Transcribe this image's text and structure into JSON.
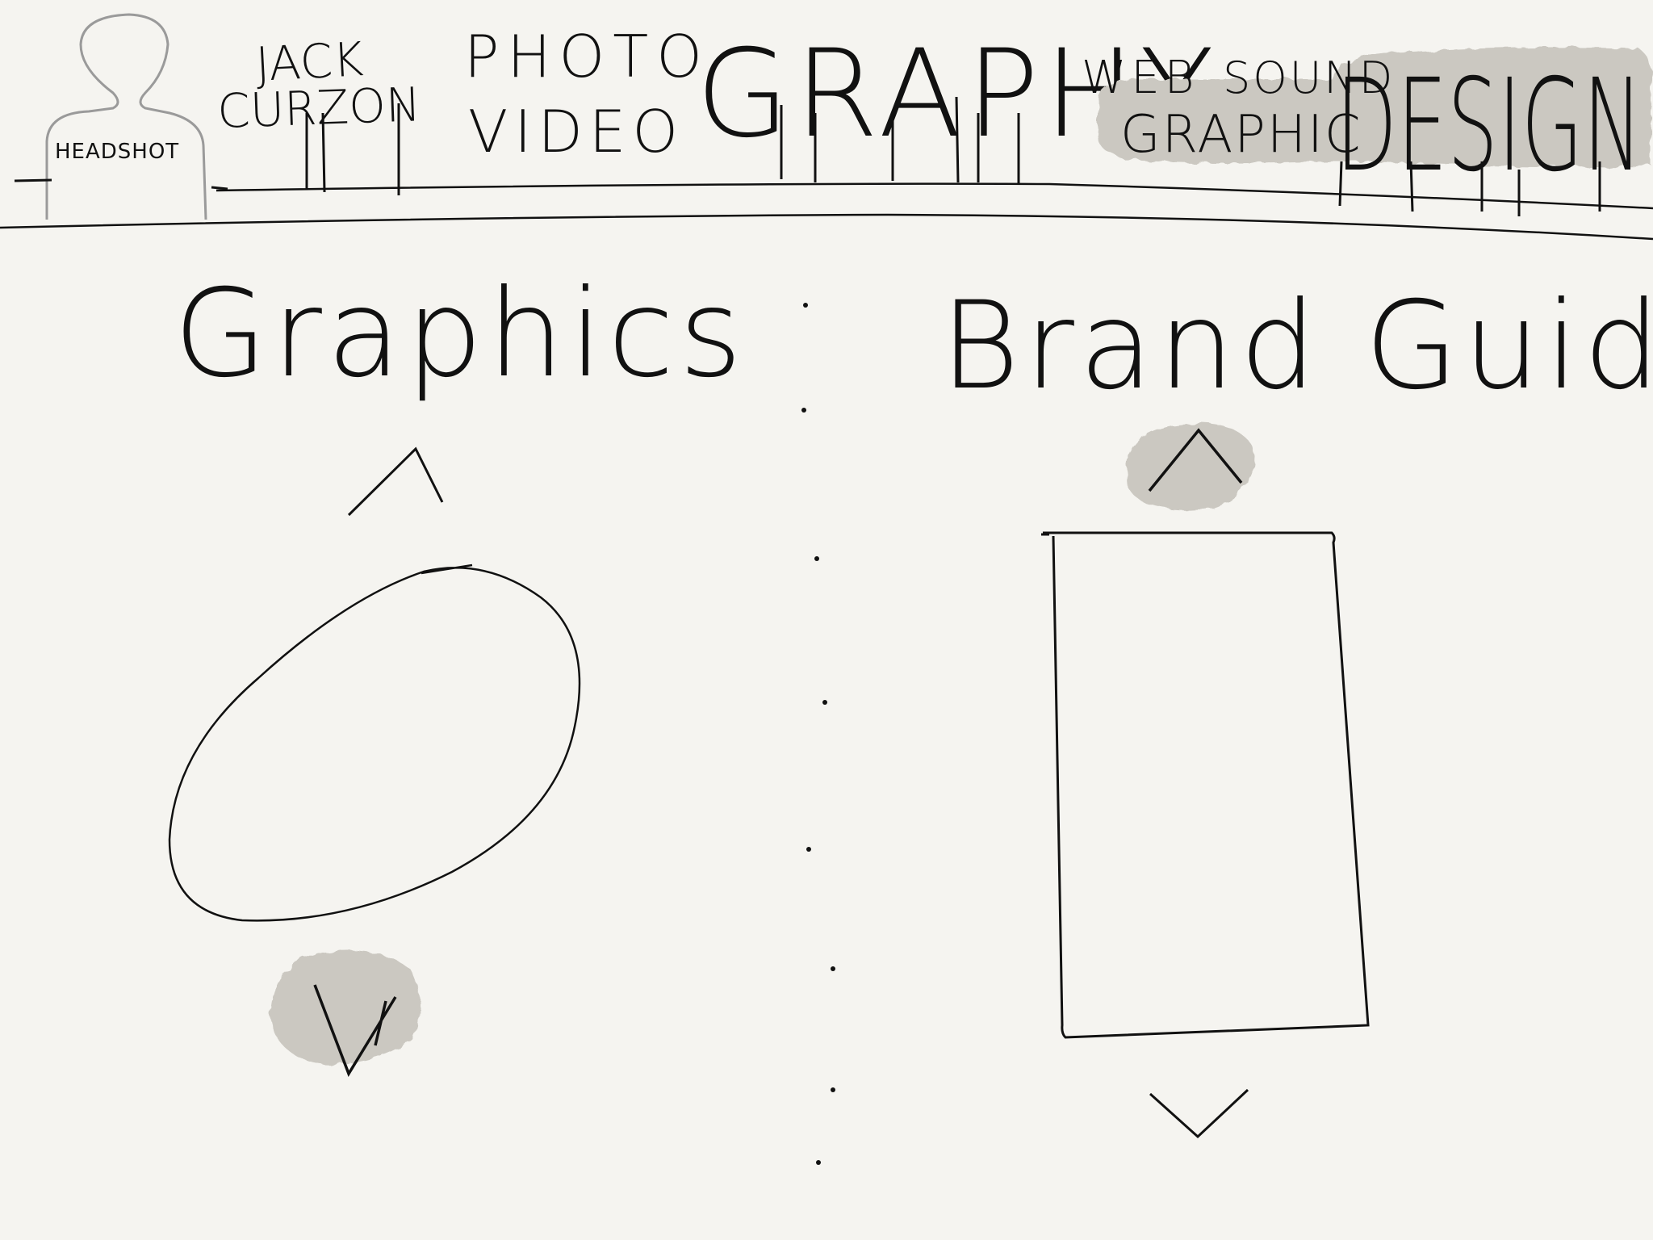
{
  "header": {
    "headshot_label": "HEADSHOT",
    "name_first": "JACK",
    "name_last": "CURZON",
    "nav_photo": "PHOTO",
    "nav_video": "VIDEO",
    "nav_graphy": "GRAPHY",
    "nav_web": "WEB",
    "nav_sound": "SOUND",
    "nav_graphic": "GRAPHIC",
    "nav_design": "DESIGN"
  },
  "left_panel": {
    "title": "Graphics",
    "up_arrow_icon": "chevron-up-icon",
    "down_arrow_icon": "chevron-down-icon"
  },
  "right_panel": {
    "title": "Brand Guides",
    "up_arrow_icon": "chevron-up-icon",
    "down_arrow_icon": "chevron-down-icon"
  },
  "colors": {
    "paper": "#f5f4f0",
    "ink": "#111111",
    "highlight": "#c9c6bf"
  }
}
